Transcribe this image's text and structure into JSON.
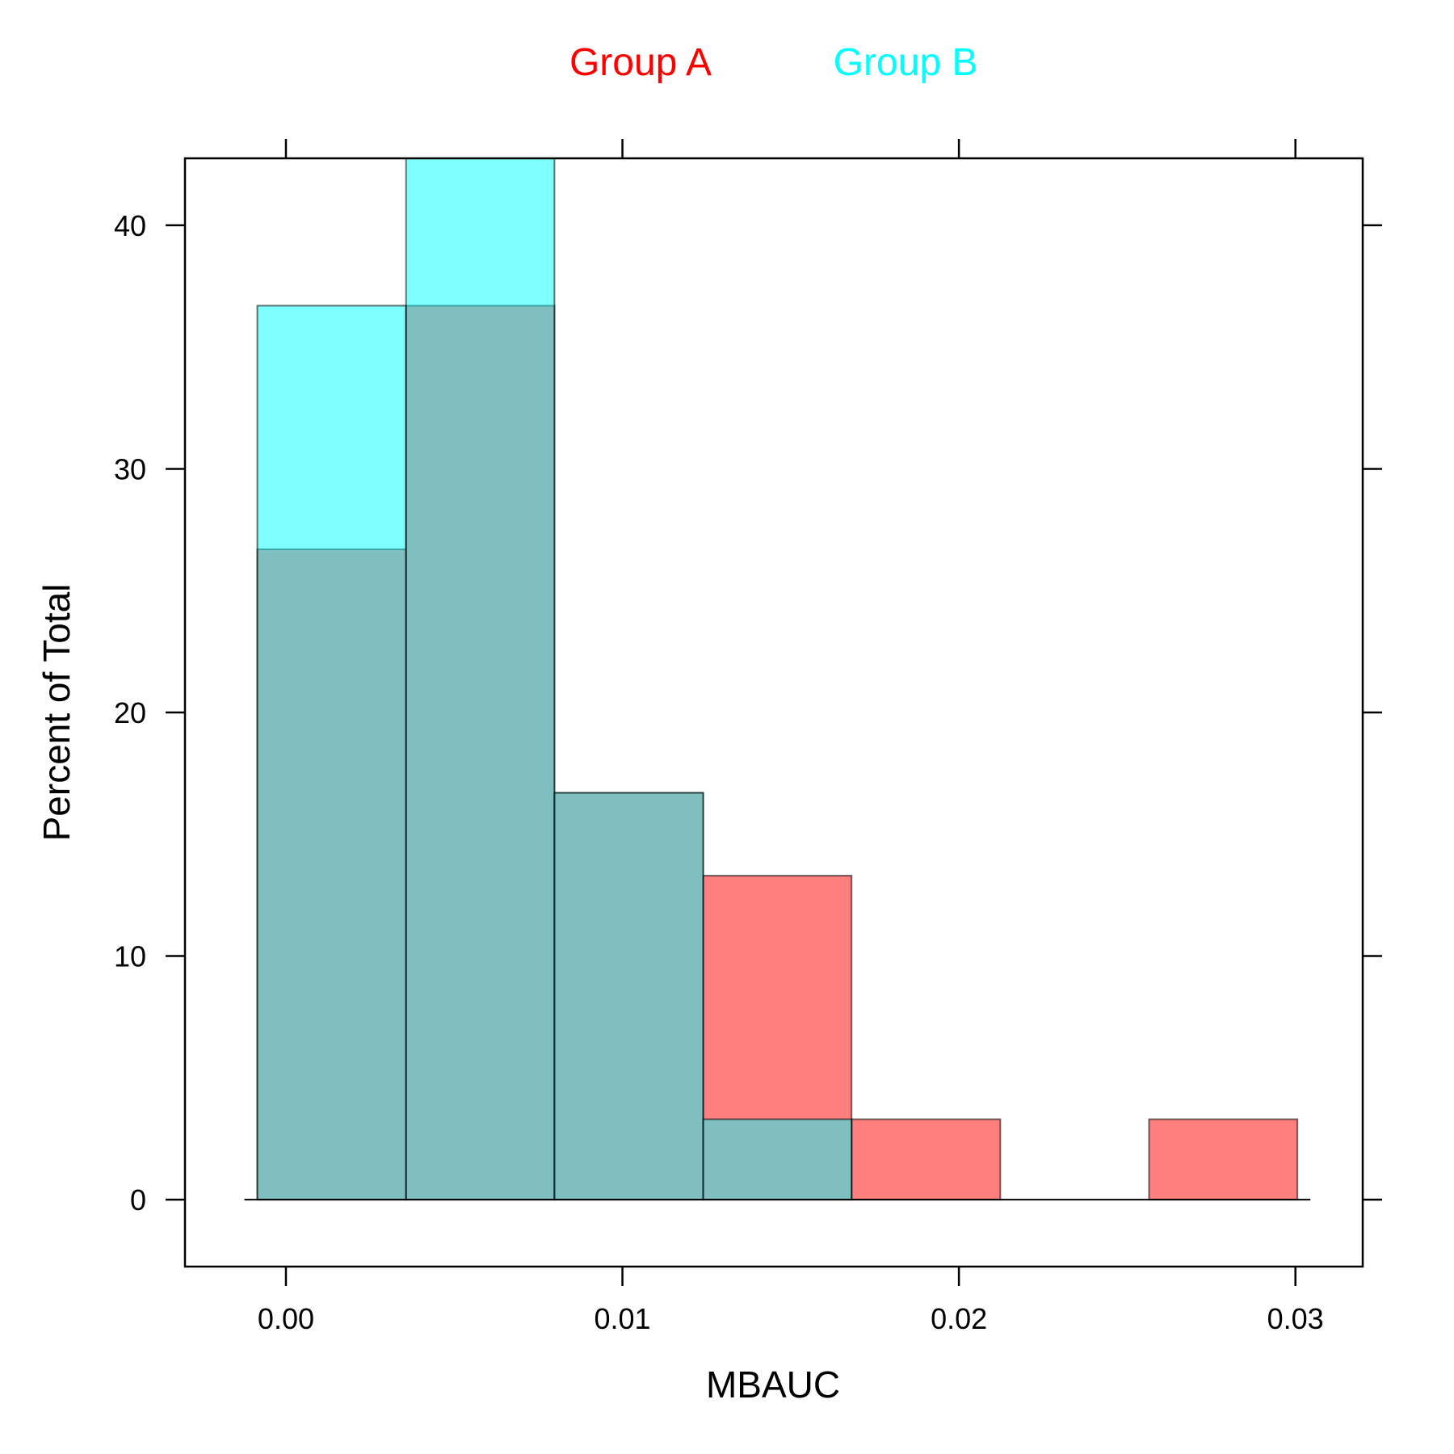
{
  "chart_data": {
    "type": "bar",
    "subtype": "overlaid-histogram",
    "title": "",
    "xlabel": "MBAUC",
    "ylabel": "Percent of Total",
    "xlim": [
      -0.003,
      0.032
    ],
    "ylim": [
      -2.75,
      42.75
    ],
    "x_ticks": [
      0.0,
      0.01,
      0.02,
      0.03
    ],
    "x_tick_labels": [
      "0.00",
      "0.01",
      "0.02",
      "0.03"
    ],
    "y_ticks": [
      0,
      10,
      20,
      30,
      40
    ],
    "y_tick_labels": [
      "0",
      "10",
      "20",
      "30",
      "40"
    ],
    "bin_edges": [
      -0.00085,
      0.00357,
      0.00798,
      0.0124,
      0.01681,
      0.02123,
      0.02565,
      0.03006
    ],
    "series": [
      {
        "name": "Group A",
        "color": "#ff0000",
        "fill": "rgba(255,0,0,0.5)",
        "values": [
          26.7,
          36.7,
          16.7,
          13.3,
          3.3,
          0,
          3.3
        ]
      },
      {
        "name": "Group B",
        "color": "#00ffff",
        "fill": "rgba(0,255,255,0.5)",
        "values": [
          36.7,
          43.3,
          16.7,
          3.3,
          0,
          0,
          0
        ]
      }
    ],
    "legend": {
      "position": "top",
      "items": [
        "Group A",
        "Group B"
      ]
    },
    "grid": false
  }
}
